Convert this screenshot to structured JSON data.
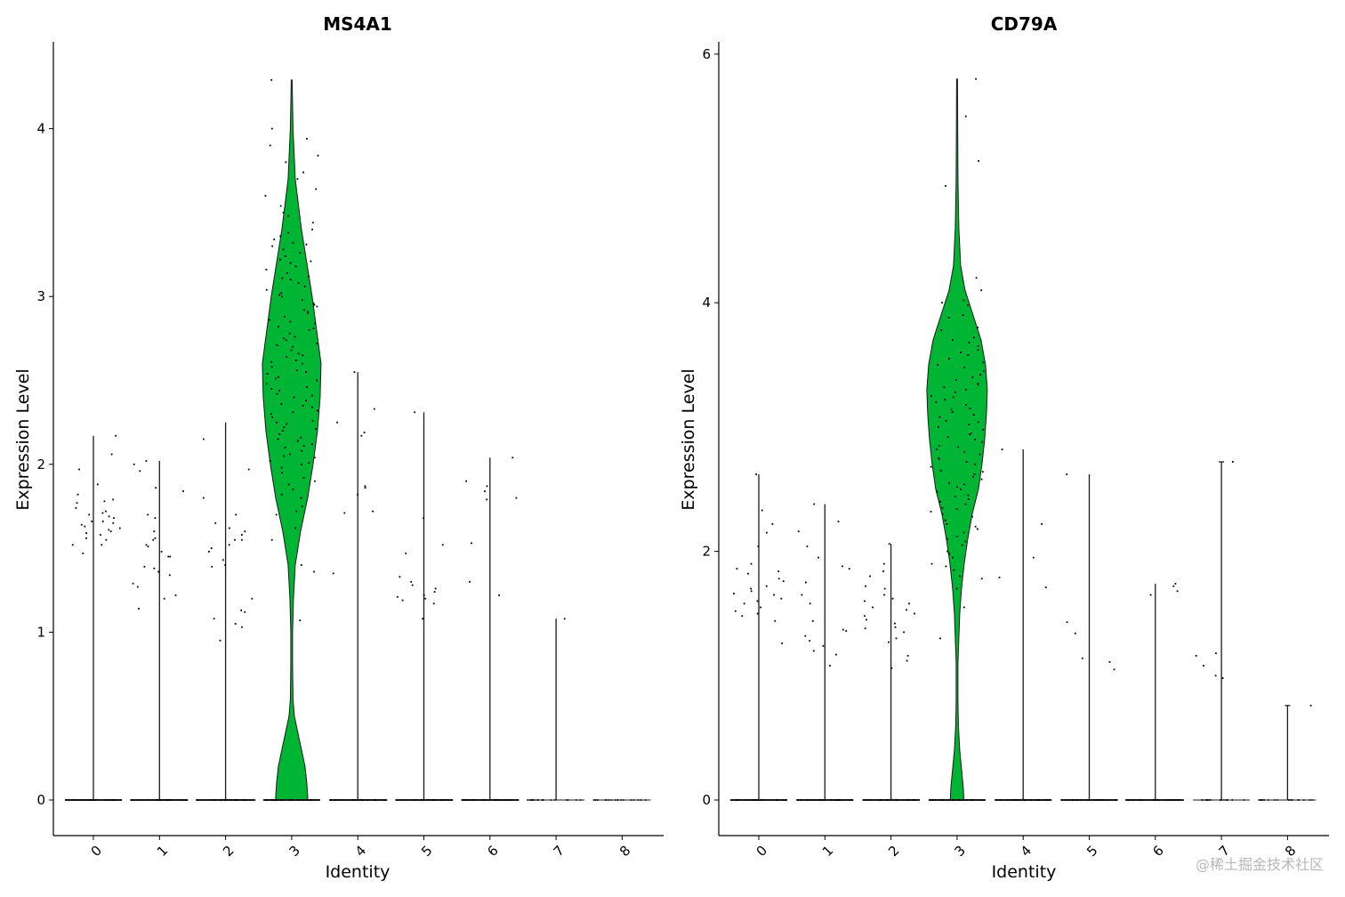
{
  "watermark": "@稀土掘金技术社区",
  "chart_data": [
    {
      "type": "violin",
      "title": "MS4A1",
      "xlabel": "Identity",
      "ylabel": "Expression Level",
      "categories": [
        "0",
        "1",
        "2",
        "3",
        "4",
        "5",
        "6",
        "7",
        "8"
      ],
      "ylim": [
        -0.22,
        4.5
      ],
      "yticks": [
        0,
        1,
        2,
        3,
        4
      ],
      "fill_color": "#00b533",
      "max": [
        2.17,
        2.02,
        2.25,
        4.29,
        2.55,
        2.31,
        2.04,
        1.08,
        0.0
      ],
      "positive_points": [
        [
          1.52,
          1.47,
          1.58,
          1.62,
          1.66,
          1.71,
          1.74,
          1.68,
          1.78,
          1.6,
          1.55,
          1.63,
          1.69,
          1.77,
          1.88,
          1.97,
          1.82,
          1.61,
          1.65,
          2.06,
          1.52,
          1.66,
          1.72,
          1.56,
          1.64,
          1.59,
          2.17,
          1.79,
          1.7
        ],
        [
          1.14,
          1.2,
          1.27,
          1.34,
          1.38,
          1.45,
          1.52,
          1.55,
          1.6,
          1.68,
          1.84,
          1.86,
          2.0,
          2.02,
          1.96,
          1.45,
          1.29,
          1.51,
          1.7,
          1.56,
          1.39,
          1.22,
          1.36,
          1.48
        ],
        [
          0.95,
          1.03,
          1.05,
          1.08,
          1.13,
          1.2,
          1.4,
          1.48,
          1.52,
          1.55,
          1.6,
          1.62,
          1.7,
          1.8,
          1.97,
          2.15,
          1.39,
          1.43,
          1.55,
          1.65,
          1.12,
          1.5,
          1.58
        ],
        [
          1.07,
          1.36,
          1.4,
          1.55,
          1.62,
          1.7,
          1.8,
          1.88,
          1.95,
          2.0,
          2.05,
          2.1,
          2.15,
          2.2,
          2.3,
          2.4,
          2.5,
          2.6,
          2.7,
          2.8,
          2.9,
          3.0,
          3.1,
          3.2,
          3.3,
          3.4,
          3.5,
          3.6,
          3.7,
          3.8,
          3.9,
          4.0,
          4.29,
          2.45,
          2.55,
          2.35,
          2.65,
          2.75,
          2.25,
          2.85,
          2.95,
          1.98,
          2.02,
          2.12,
          2.22,
          2.32,
          2.42,
          2.52,
          2.62,
          2.72,
          2.82,
          2.92,
          3.02,
          3.12,
          3.22,
          3.32,
          1.92,
          1.85,
          1.75,
          2.08,
          2.18,
          2.28,
          2.38,
          2.48,
          2.58,
          2.68,
          2.78,
          2.88,
          2.98,
          3.08,
          3.18,
          3.28,
          3.38,
          3.48,
          1.72,
          1.82,
          1.9,
          2.04,
          2.14,
          2.24,
          2.34,
          2.44,
          2.54,
          2.64,
          2.74,
          2.84,
          2.94,
          3.04,
          3.14,
          3.24,
          3.34,
          3.44,
          3.54,
          3.64,
          3.74,
          3.84,
          3.94,
          2.06,
          2.16,
          2.26,
          2.36,
          2.46,
          2.56,
          2.66,
          2.76,
          2.86,
          2.96,
          3.06,
          3.16,
          3.26,
          3.36,
          2.01,
          2.11,
          2.21,
          2.31,
          2.41,
          2.51,
          2.61,
          2.71,
          2.81,
          2.91,
          3.01,
          3.11,
          3.21,
          3.31
        ],
        [
          1.35,
          1.71,
          1.72,
          1.82,
          1.87,
          2.17,
          2.25,
          2.33,
          2.55,
          1.86,
          2.19
        ],
        [
          1.08,
          1.17,
          1.2,
          1.22,
          1.24,
          1.26,
          1.28,
          1.3,
          1.33,
          1.47,
          1.52,
          1.68,
          2.31,
          1.21,
          1.19
        ],
        [
          1.22,
          1.3,
          1.53,
          1.8,
          1.84,
          1.87,
          1.9,
          2.04,
          1.79
        ],
        [
          1.08
        ],
        []
      ]
    },
    {
      "type": "violin",
      "title": "CD79A",
      "xlabel": "Identity",
      "ylabel": "Expression Level",
      "categories": [
        "0",
        "1",
        "2",
        "3",
        "4",
        "5",
        "6",
        "7",
        "8"
      ],
      "ylim": [
        -0.28,
        6.1
      ],
      "yticks": [
        0,
        2,
        4,
        6
      ],
      "fill_color": "#00b533",
      "max": [
        2.62,
        2.38,
        2.06,
        5.8,
        2.82,
        2.62,
        1.74,
        2.72,
        0.76
      ],
      "positive_points": [
        [
          1.26,
          1.44,
          1.48,
          1.52,
          1.58,
          1.62,
          1.65,
          1.7,
          1.76,
          1.82,
          1.86,
          1.9,
          2.15,
          2.04,
          2.62,
          1.6,
          1.72,
          1.55,
          1.66,
          2.33,
          1.78,
          2.22,
          1.84,
          1.68,
          1.5
        ],
        [
          1.08,
          1.17,
          1.2,
          1.24,
          1.32,
          1.37,
          1.44,
          1.65,
          1.75,
          1.88,
          2.04,
          2.16,
          2.24,
          2.38,
          1.36,
          1.28,
          1.86,
          1.95,
          1.58
        ],
        [
          1.06,
          1.12,
          1.16,
          1.27,
          1.35,
          1.39,
          1.45,
          1.5,
          1.55,
          1.6,
          1.65,
          1.7,
          1.8,
          1.9,
          2.06,
          1.42,
          1.53,
          1.62,
          1.48,
          1.58,
          1.38,
          1.3,
          1.72,
          1.84
        ],
        [
          1.3,
          1.55,
          1.7,
          1.8,
          1.9,
          2.0,
          2.1,
          2.2,
          2.3,
          2.4,
          2.5,
          2.6,
          2.7,
          2.8,
          2.9,
          3.0,
          3.1,
          3.2,
          3.3,
          3.4,
          3.5,
          3.6,
          3.7,
          3.8,
          3.9,
          4.0,
          4.2,
          4.94,
          5.14,
          5.5,
          5.8,
          3.15,
          3.25,
          3.35,
          3.45,
          2.95,
          3.05,
          2.85,
          2.75,
          2.65,
          3.55,
          3.65,
          2.55,
          2.45,
          2.35,
          2.25,
          2.15,
          2.05,
          1.95,
          1.85,
          3.12,
          3.22,
          3.32,
          3.42,
          3.02,
          2.92,
          2.82,
          2.72,
          2.62,
          2.52,
          2.42,
          2.32,
          2.22,
          2.12,
          3.52,
          3.62,
          3.72,
          3.08,
          3.18,
          3.28,
          3.38,
          2.98,
          2.88,
          2.78,
          2.68,
          2.58,
          2.48,
          2.38,
          2.28,
          2.18,
          2.08,
          1.98,
          1.88,
          1.78,
          3.48,
          3.58,
          3.68,
          3.78,
          3.88,
          3.98,
          4.1,
          4.02,
          3.14,
          3.24,
          3.34,
          3.04,
          2.94,
          2.84,
          2.74,
          2.64,
          2.54,
          2.44,
          2.34
        ],
        [
          1.71,
          1.79,
          1.95,
          2.22,
          2.82
        ],
        [
          1.05,
          1.11,
          1.14,
          1.34,
          1.43,
          2.62
        ],
        [
          1.65,
          1.68,
          1.72,
          1.74
        ],
        [
          0.98,
          1.0,
          1.08,
          1.18,
          2.72,
          1.16
        ],
        [
          0.76
        ]
      ]
    }
  ]
}
